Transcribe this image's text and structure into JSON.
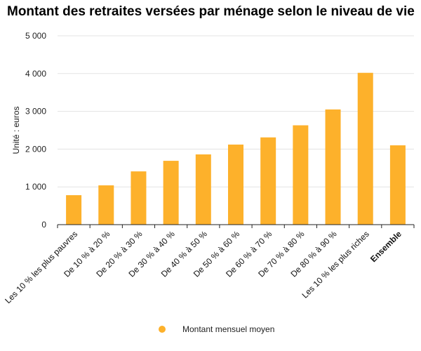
{
  "chart_data": {
    "type": "bar",
    "title": "Montant des retraites versées par ménage selon le niveau de vie",
    "ylabel": "Unité : euros",
    "xlabel": "",
    "ylim": [
      0,
      5000
    ],
    "yticks": [
      0,
      1000,
      2000,
      3000,
      4000,
      5000
    ],
    "ytick_labels": [
      "0",
      "1 000",
      "2 000",
      "3 000",
      "4 000",
      "5 000"
    ],
    "categories": [
      "Les 10 % les plus pauvres",
      "De 10 % à 20 %",
      "De 20 % à 30 %",
      "De 30 % à 40 %",
      "De 40 % à 50 %",
      "De 50 % à 60 %",
      "De 60 % à 70 %",
      "De 70 % à 80 %",
      "De 80 % à 90 %",
      "Les 10 % les plus riches",
      "Ensemble"
    ],
    "bold_categories": [
      "Ensemble"
    ],
    "series": [
      {
        "name": "Montant mensuel moyen",
        "color": "#FDB12B",
        "values": [
          780,
          1040,
          1410,
          1690,
          1860,
          2120,
          2310,
          2630,
          3050,
          4020,
          2100
        ]
      }
    ],
    "grid": true,
    "legend_position": "bottom"
  }
}
